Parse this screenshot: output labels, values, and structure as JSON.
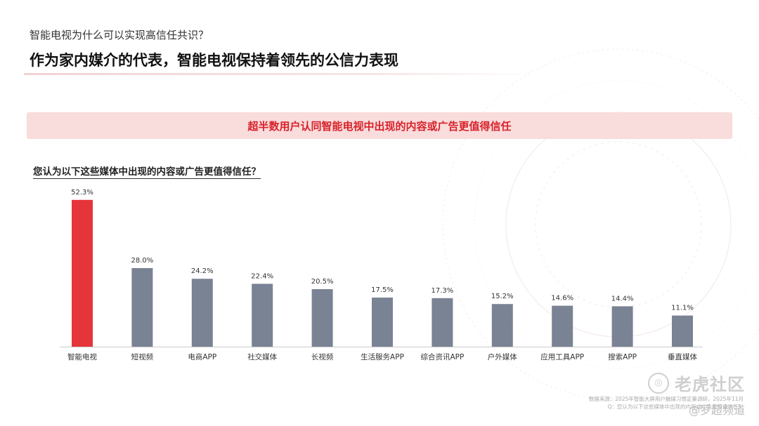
{
  "header": {
    "eyebrow": "智能电视为什么可以实现高信任共识？",
    "title": "作为家内媒介的代表，智能电视保持着领先的公信力表现"
  },
  "banner": {
    "text": "超半数用户认同智能电视中出现的内容或广告更值得信任"
  },
  "question": {
    "text": "您认为以下这些媒体中出现的内容或广告更值得信任？"
  },
  "chart_data": {
    "type": "bar",
    "title": "",
    "xlabel": "",
    "ylabel": "",
    "ylim": [
      0,
      60
    ],
    "grid": false,
    "legend": "none",
    "categories": [
      "智能电视",
      "短视频",
      "电商APP",
      "社交媒体",
      "长视频",
      "生活服务APP",
      "综合资讯APP",
      "户外媒体",
      "应用工具APP",
      "搜索APP",
      "垂直媒体"
    ],
    "values": [
      52.3,
      28.0,
      24.2,
      22.4,
      20.5,
      17.5,
      17.3,
      15.2,
      14.6,
      14.4,
      11.1
    ],
    "value_labels": [
      "52.3%",
      "28.0%",
      "24.2%",
      "22.4%",
      "20.5%",
      "17.5%",
      "17.3%",
      "15.2%",
      "14.6%",
      "14.4%",
      "11.1%"
    ],
    "highlight_index": 0,
    "colors": {
      "highlight": "#e5353a",
      "default": "#7a8394",
      "axis": "#cccccc"
    }
  },
  "footer": {
    "source": "数据来源：2025年智能大屏用户触媒习惯定量调研，2025年11月",
    "question_note": "Q：您认为以下这些媒体中出现的内容或广告更值得信任？"
  },
  "watermark": {
    "main": "老虎社区",
    "sub": "@罗超频道",
    "icon": "tiger-community-logo-icon"
  }
}
